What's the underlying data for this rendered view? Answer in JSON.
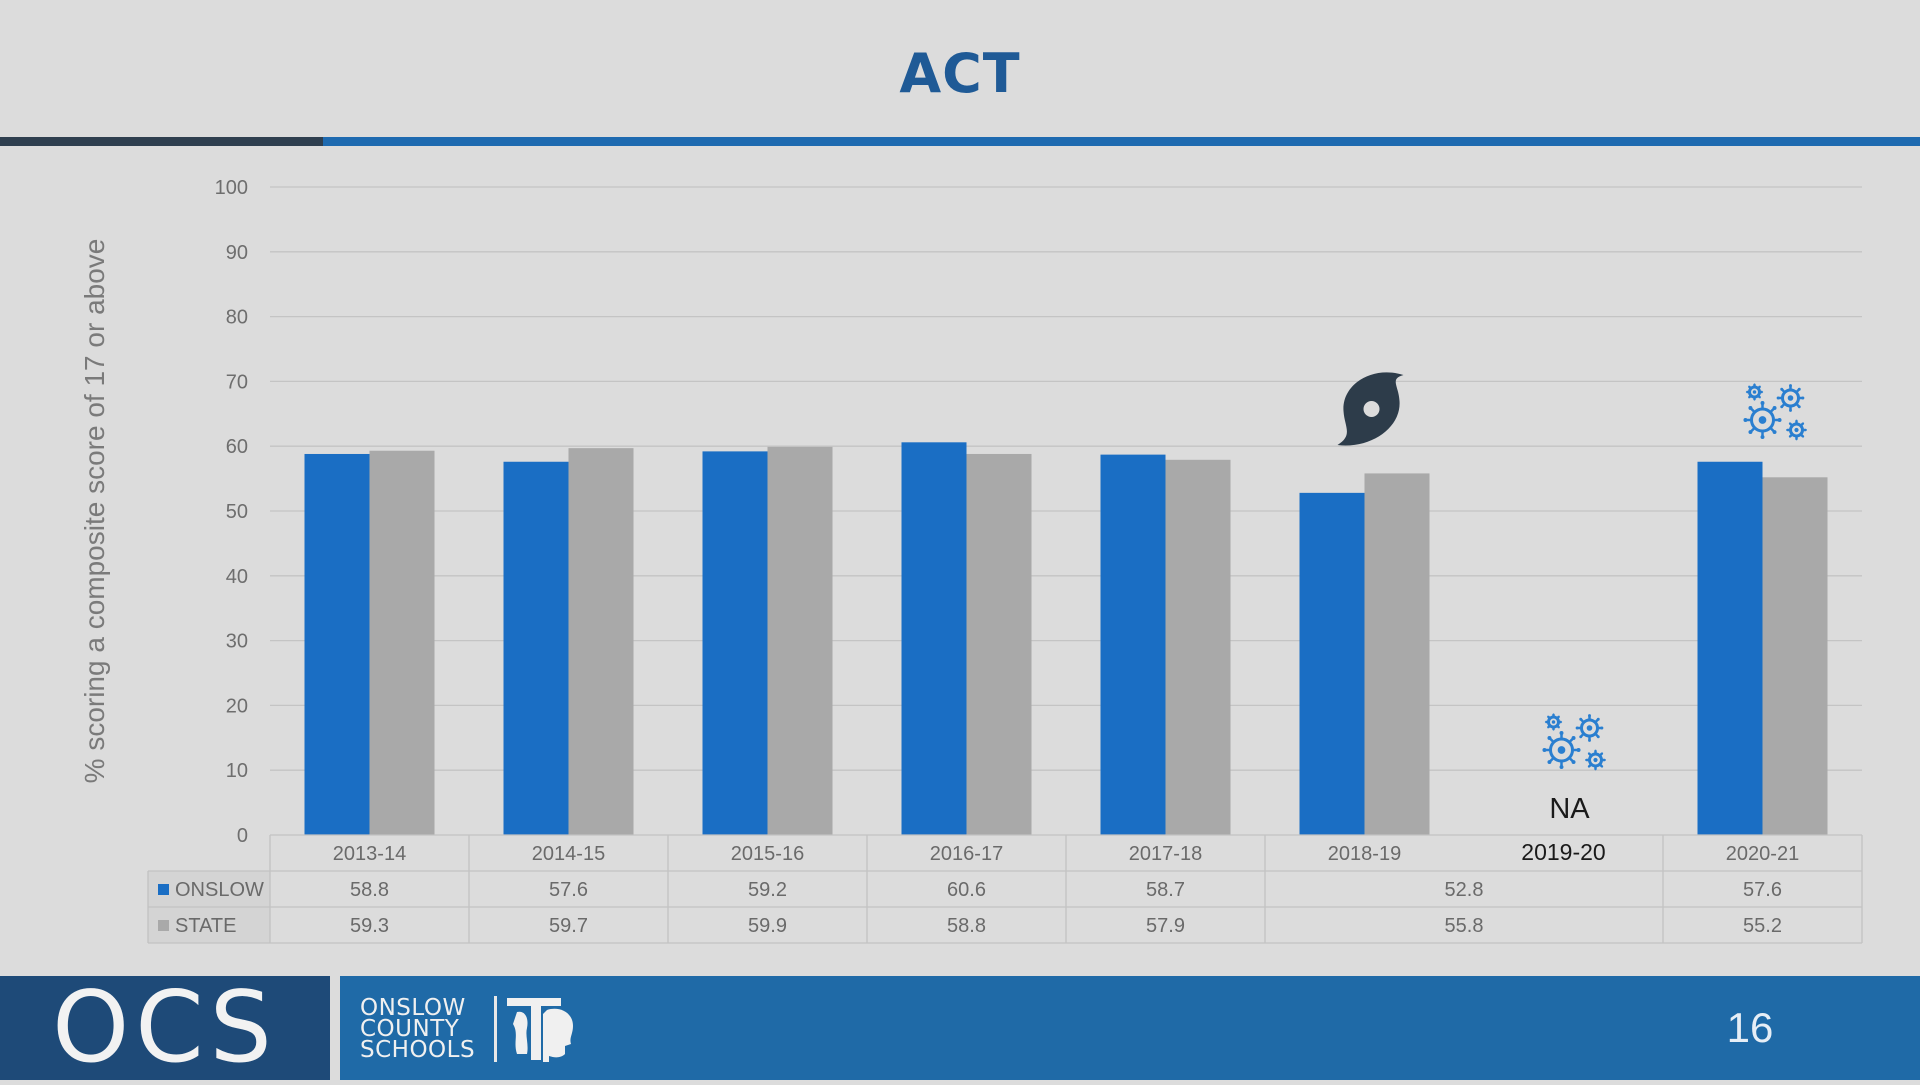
{
  "slide": {
    "title": "ACT",
    "page_number": "16"
  },
  "footer": {
    "logo_text": "OCS",
    "school_name_lines": [
      "ONSLOW",
      "COUNTY",
      "SCHOOLS"
    ]
  },
  "colors": {
    "onslow": "#1a6ec4",
    "state": "#a9a9a9",
    "title": "#1f5a96",
    "footer": "#1f6aa7"
  },
  "chart_data": {
    "type": "bar",
    "title": "",
    "ylabel": "% scoring a composite score of 17 or above",
    "xlabel": "",
    "ylim": [
      0,
      100
    ],
    "yticks": [
      0,
      10,
      20,
      30,
      40,
      50,
      60,
      70,
      80,
      90,
      100
    ],
    "grid": true,
    "categories": [
      "2013-14",
      "2014-15",
      "2015-16",
      "2016-17",
      "2017-18",
      "2018-19",
      "2019-20",
      "2020-21"
    ],
    "series": [
      {
        "name": "ONSLOW",
        "values": [
          58.8,
          57.6,
          59.2,
          60.6,
          58.7,
          52.8,
          null,
          57.6
        ]
      },
      {
        "name": "STATE",
        "values": [
          59.3,
          59.7,
          59.9,
          58.8,
          57.9,
          55.8,
          null,
          55.2
        ]
      }
    ],
    "na_category": "2019-20",
    "na_label": "NA",
    "icons": [
      {
        "name": "hurricane-icon",
        "category": "2018-19"
      },
      {
        "name": "virus-icon",
        "category": "2019-20"
      },
      {
        "name": "virus-icon",
        "category": "2020-21"
      }
    ],
    "data_table": true
  }
}
